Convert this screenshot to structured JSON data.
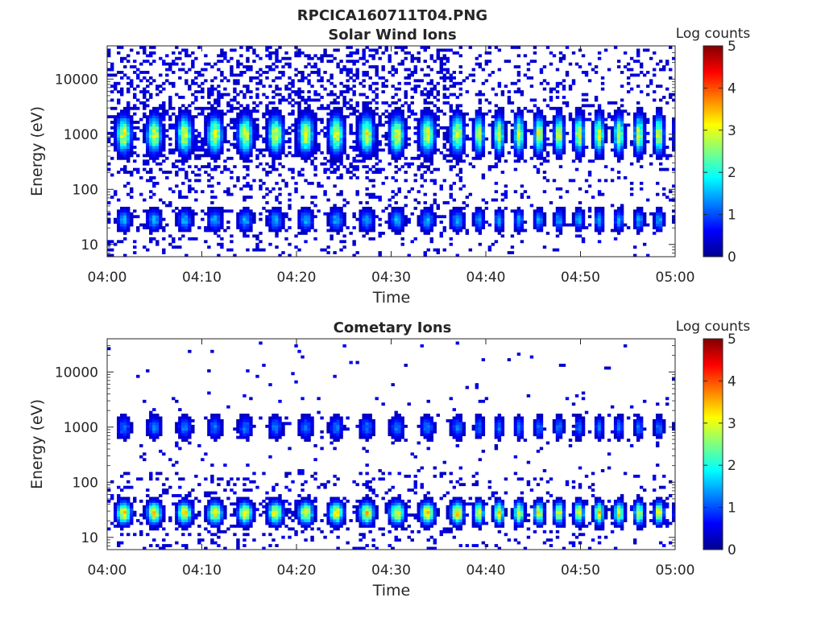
{
  "figure_title": "RPCICA160711T04.PNG",
  "chart_data": [
    {
      "type": "heatmap",
      "title": "Solar Wind Ions",
      "xlabel": "Time",
      "ylabel": "Energy (eV)",
      "x_ticks": [
        "04:00",
        "04:10",
        "04:20",
        "04:30",
        "04:40",
        "04:50",
        "05:00"
      ],
      "y_ticks": [
        "10",
        "100",
        "1000",
        "10000"
      ],
      "y_scale": "log",
      "ylim": [
        6,
        40000
      ],
      "xlim": [
        "04:00",
        "05:00"
      ],
      "colorbar": {
        "label": "Log counts",
        "ticks": [
          "0",
          "1",
          "2",
          "3",
          "4",
          "5"
        ],
        "range": [
          0,
          5
        ]
      },
      "colormap": "jet",
      "legend": "colorbar-right",
      "grid": false,
      "features": {
        "main_band_peak_log_counts": 3.0,
        "main_band_energy_eV": 1000,
        "low_band_peak_log_counts": 1.5,
        "low_band_energy_eV": 28
      }
    },
    {
      "type": "heatmap",
      "title": "Cometary Ions",
      "xlabel": "Time",
      "ylabel": "Energy (eV)",
      "x_ticks": [
        "04:00",
        "04:10",
        "04:20",
        "04:30",
        "04:40",
        "04:50",
        "05:00"
      ],
      "y_ticks": [
        "10",
        "100",
        "1000",
        "10000"
      ],
      "y_scale": "log",
      "ylim": [
        6,
        40000
      ],
      "xlim": [
        "04:00",
        "05:00"
      ],
      "colorbar": {
        "label": "Log counts",
        "ticks": [
          "0",
          "1",
          "2",
          "3",
          "4",
          "5"
        ],
        "range": [
          0,
          5
        ]
      },
      "colormap": "jet",
      "legend": "colorbar-right",
      "grid": false,
      "features": {
        "main_band_peak_log_counts": 3.2,
        "main_band_energy_eV": 28,
        "upper_band_peak_log_counts": 1.2,
        "upper_band_energy_eV": 1000
      }
    }
  ]
}
